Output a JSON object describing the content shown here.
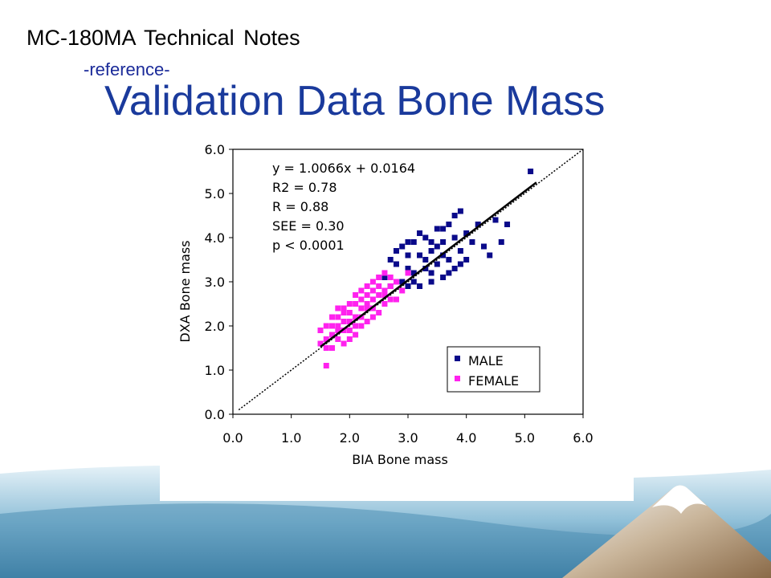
{
  "header": {
    "title": "MC-180MA Technical Notes",
    "subtitle": "-reference-",
    "slide_title": "Validation Data Bone Mass"
  },
  "colors": {
    "male": "#0a0a8a",
    "female": "#ff22ee",
    "title_blue": "#1a3a9c",
    "wave_light": "#cfe6f2",
    "wave_dark": "#2f6f96",
    "mountain": "#9a7a58"
  },
  "chart_data": {
    "type": "scatter",
    "xlabel": "BIA Bone mass",
    "ylabel": "DXA Bone mass",
    "xlim": [
      0,
      6
    ],
    "ylim": [
      0,
      6
    ],
    "x_ticks": [
      "0.0",
      "1.0",
      "2.0",
      "3.0",
      "4.0",
      "5.0",
      "6.0"
    ],
    "y_ticks": [
      "0.0",
      "1.0",
      "2.0",
      "3.0",
      "4.0",
      "5.0",
      "6.0"
    ],
    "regression": {
      "slope": 1.0066,
      "intercept": 0.0164
    },
    "stats": [
      "y = 1.0066x + 0.0164",
      "R2 = 0.78",
      "R = 0.88",
      "SEE = 0.30",
      "p < 0.0001"
    ],
    "legend_position": "bottom-right",
    "series": [
      {
        "name": "MALE",
        "color": "#0a0a8a",
        "points": [
          [
            2.6,
            3.1
          ],
          [
            2.7,
            3.5
          ],
          [
            2.8,
            3.4
          ],
          [
            2.9,
            3.8
          ],
          [
            3.0,
            3.6
          ],
          [
            3.0,
            2.9
          ],
          [
            3.1,
            3.9
          ],
          [
            3.1,
            3.2
          ],
          [
            3.2,
            3.6
          ],
          [
            3.2,
            2.9
          ],
          [
            3.3,
            4.0
          ],
          [
            3.3,
            3.3
          ],
          [
            3.4,
            3.7
          ],
          [
            3.4,
            3.0
          ],
          [
            3.5,
            4.2
          ],
          [
            3.5,
            3.4
          ],
          [
            3.6,
            3.9
          ],
          [
            3.6,
            3.1
          ],
          [
            3.7,
            4.3
          ],
          [
            3.7,
            3.5
          ],
          [
            3.8,
            4.0
          ],
          [
            3.8,
            3.3
          ],
          [
            3.9,
            4.6
          ],
          [
            3.9,
            3.7
          ],
          [
            4.0,
            4.1
          ],
          [
            4.0,
            3.5
          ],
          [
            4.1,
            3.9
          ],
          [
            4.2,
            4.3
          ],
          [
            4.3,
            3.8
          ],
          [
            4.4,
            3.6
          ],
          [
            4.5,
            4.4
          ],
          [
            4.6,
            3.9
          ],
          [
            4.7,
            4.3
          ],
          [
            5.1,
            5.5
          ],
          [
            3.0,
            3.3
          ],
          [
            3.1,
            3.0
          ],
          [
            3.3,
            3.5
          ],
          [
            3.4,
            3.9
          ],
          [
            3.5,
            3.8
          ],
          [
            3.6,
            3.6
          ],
          [
            3.7,
            3.2
          ],
          [
            2.9,
            3.0
          ],
          [
            2.8,
            3.7
          ],
          [
            3.2,
            4.1
          ],
          [
            3.4,
            3.2
          ],
          [
            3.6,
            4.2
          ],
          [
            3.8,
            4.5
          ],
          [
            3.9,
            3.4
          ],
          [
            2.7,
            2.9
          ],
          [
            3.0,
            3.9
          ]
        ]
      },
      {
        "name": "FEMALE",
        "color": "#ff22ee",
        "points": [
          [
            1.5,
            1.6
          ],
          [
            1.5,
            1.9
          ],
          [
            1.6,
            1.5
          ],
          [
            1.6,
            2.0
          ],
          [
            1.6,
            1.1
          ],
          [
            1.7,
            1.8
          ],
          [
            1.7,
            2.2
          ],
          [
            1.7,
            1.5
          ],
          [
            1.8,
            2.0
          ],
          [
            1.8,
            1.7
          ],
          [
            1.8,
            2.4
          ],
          [
            1.9,
            1.9
          ],
          [
            1.9,
            2.3
          ],
          [
            1.9,
            1.6
          ],
          [
            2.0,
            2.1
          ],
          [
            2.0,
            2.5
          ],
          [
            2.0,
            1.7
          ],
          [
            2.1,
            2.2
          ],
          [
            2.1,
            2.7
          ],
          [
            2.1,
            1.8
          ],
          [
            2.2,
            2.4
          ],
          [
            2.2,
            2.0
          ],
          [
            2.2,
            2.8
          ],
          [
            2.3,
            2.5
          ],
          [
            2.3,
            2.1
          ],
          [
            2.3,
            2.9
          ],
          [
            2.4,
            2.6
          ],
          [
            2.4,
            2.2
          ],
          [
            2.4,
            3.0
          ],
          [
            2.5,
            2.7
          ],
          [
            2.5,
            2.3
          ],
          [
            2.5,
            3.1
          ],
          [
            2.6,
            2.8
          ],
          [
            2.6,
            2.5
          ],
          [
            2.6,
            3.2
          ],
          [
            2.7,
            2.9
          ],
          [
            2.7,
            2.6
          ],
          [
            2.8,
            3.0
          ],
          [
            2.8,
            2.6
          ],
          [
            2.9,
            2.8
          ],
          [
            3.0,
            3.2
          ],
          [
            1.6,
            1.7
          ],
          [
            1.7,
            2.0
          ],
          [
            1.8,
            1.9
          ],
          [
            1.9,
            2.1
          ],
          [
            2.0,
            2.3
          ],
          [
            2.1,
            2.5
          ],
          [
            2.2,
            2.6
          ],
          [
            2.3,
            2.7
          ],
          [
            2.4,
            2.8
          ],
          [
            2.5,
            2.9
          ],
          [
            2.0,
            1.9
          ],
          [
            2.1,
            2.0
          ],
          [
            1.9,
            2.4
          ],
          [
            2.2,
            2.2
          ],
          [
            2.3,
            2.4
          ],
          [
            2.4,
            2.4
          ],
          [
            2.6,
            2.7
          ],
          [
            2.7,
            3.1
          ],
          [
            1.8,
            2.2
          ]
        ]
      }
    ]
  }
}
